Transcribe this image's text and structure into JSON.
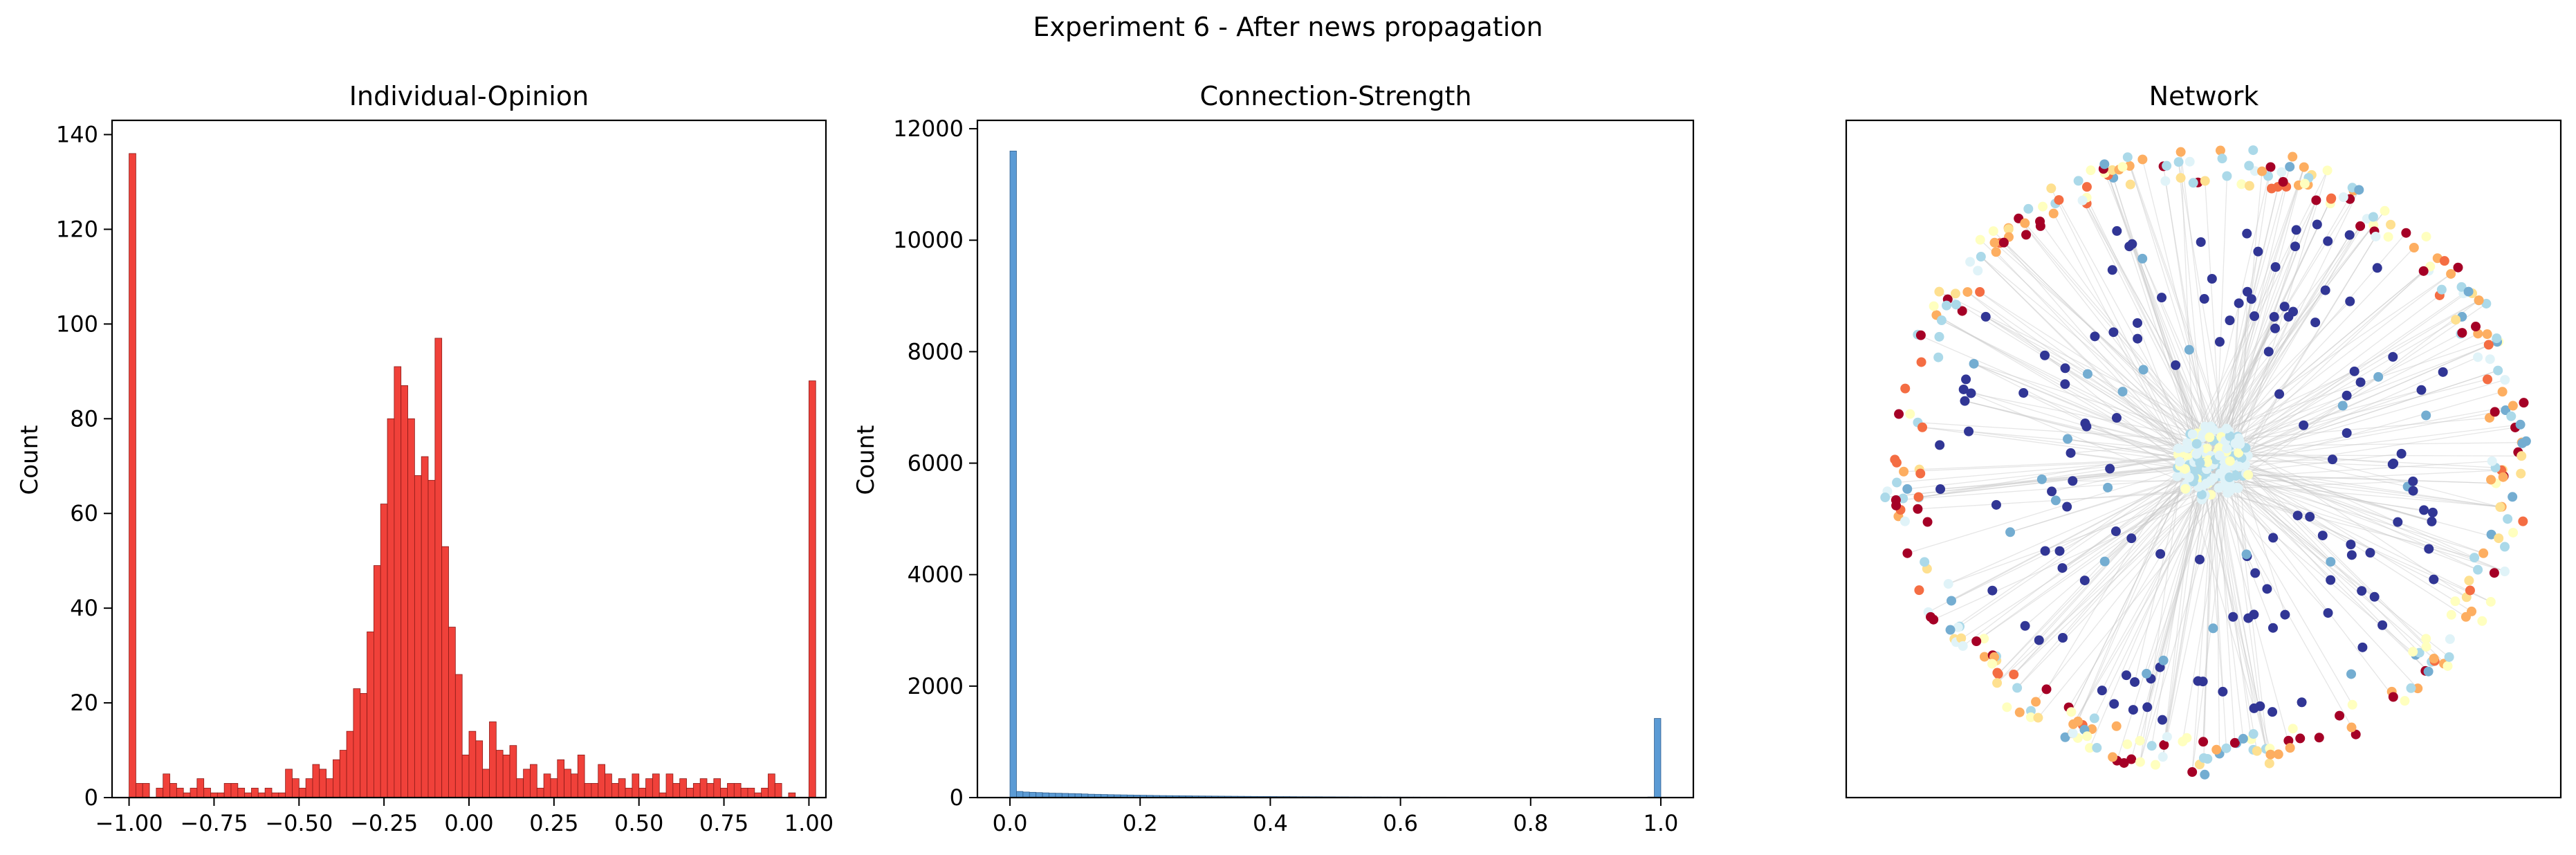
{
  "figure": {
    "suptitle": "Experiment 6 - After news propagation"
  },
  "colors": {
    "opinion_bar": "#f0413a",
    "opinion_edge": "#8a1a17",
    "strength_bar": "#5b9bd5",
    "strength_edge": "#2f5f8f",
    "network_edge": "#c8c8c8",
    "node_palette": [
      "#313695",
      "#74add1",
      "#abd9e9",
      "#e0f3f8",
      "#ffffbf",
      "#fee090",
      "#fdae61",
      "#f46d43",
      "#a50026"
    ]
  },
  "chart_data": [
    {
      "type": "bar",
      "title": "Individual-Opinion",
      "xlabel": "",
      "ylabel": "Count",
      "xlim": [
        -1.05,
        1.05
      ],
      "ylim": [
        0,
        143
      ],
      "xticks": [
        "−1.00",
        "−0.75",
        "−0.50",
        "−0.25",
        "0.00",
        "0.25",
        "0.50",
        "0.75",
        "1.00"
      ],
      "xtick_values": [
        -1.0,
        -0.75,
        -0.5,
        -0.25,
        0.0,
        0.25,
        0.5,
        0.75,
        1.0
      ],
      "yticks": [
        "0",
        "20",
        "40",
        "60",
        "80",
        "100",
        "120",
        "140"
      ],
      "ytick_values": [
        0,
        20,
        40,
        60,
        80,
        100,
        120,
        140
      ],
      "bin_start": -1.0,
      "bin_width": 0.02,
      "values": [
        136,
        3,
        3,
        0,
        2,
        5,
        3,
        2,
        1,
        2,
        4,
        2,
        1,
        1,
        3,
        3,
        2,
        1,
        2,
        1,
        2,
        1,
        1,
        6,
        4,
        2,
        4,
        7,
        6,
        4,
        8,
        10,
        14,
        23,
        22,
        35,
        49,
        62,
        80,
        91,
        87,
        80,
        68,
        72,
        67,
        97,
        53,
        36,
        26,
        9,
        14,
        12,
        6,
        16,
        10,
        9,
        11,
        4,
        6,
        7,
        2,
        5,
        4,
        8,
        6,
        5,
        9,
        3,
        3,
        7,
        5,
        3,
        4,
        2,
        5,
        2,
        4,
        5,
        1,
        5,
        3,
        4,
        2,
        3,
        4,
        3,
        4,
        2,
        3,
        3,
        2,
        2,
        1,
        2,
        5,
        3,
        0,
        1,
        0,
        0,
        88
      ],
      "grid": false,
      "legend": "none"
    },
    {
      "type": "bar",
      "title": "Connection-Strength",
      "xlabel": "",
      "ylabel": "Count",
      "xlim": [
        -0.05,
        1.05
      ],
      "ylim": [
        0,
        12150
      ],
      "xticks": [
        "0.0",
        "0.2",
        "0.4",
        "0.6",
        "0.8",
        "1.0"
      ],
      "xtick_values": [
        0.0,
        0.2,
        0.4,
        0.6,
        0.8,
        1.0
      ],
      "yticks": [
        "0",
        "2000",
        "4000",
        "6000",
        "8000",
        "10000",
        "12000"
      ],
      "ytick_values": [
        0,
        2000,
        4000,
        6000,
        8000,
        10000,
        12000
      ],
      "bin_start": 0.0,
      "bin_width": 0.01,
      "values": [
        11600,
        110,
        100,
        95,
        90,
        85,
        80,
        78,
        75,
        72,
        70,
        65,
        60,
        58,
        55,
        52,
        50,
        48,
        46,
        44,
        42,
        40,
        38,
        36,
        35,
        34,
        33,
        32,
        30,
        29,
        28,
        27,
        26,
        25,
        24,
        23,
        22,
        21,
        20,
        20,
        19,
        18,
        18,
        17,
        16,
        16,
        15,
        15,
        14,
        14,
        13,
        13,
        12,
        12,
        11,
        11,
        11,
        10,
        10,
        10,
        9,
        9,
        9,
        8,
        8,
        8,
        8,
        7,
        7,
        7,
        7,
        6,
        6,
        6,
        6,
        6,
        5,
        5,
        5,
        5,
        5,
        5,
        4,
        4,
        4,
        4,
        4,
        4,
        4,
        3,
        3,
        3,
        3,
        3,
        3,
        3,
        3,
        3,
        10,
        1420
      ],
      "grid": false,
      "legend": "none"
    },
    {
      "type": "scatter",
      "title": "Network",
      "xlabel": "",
      "ylabel": "",
      "axes": "off",
      "description_role": "network graph drawing",
      "layout": "dense center cluster, inner ring of dark blue nodes, outer ring of warm-colored nodes"
    }
  ]
}
